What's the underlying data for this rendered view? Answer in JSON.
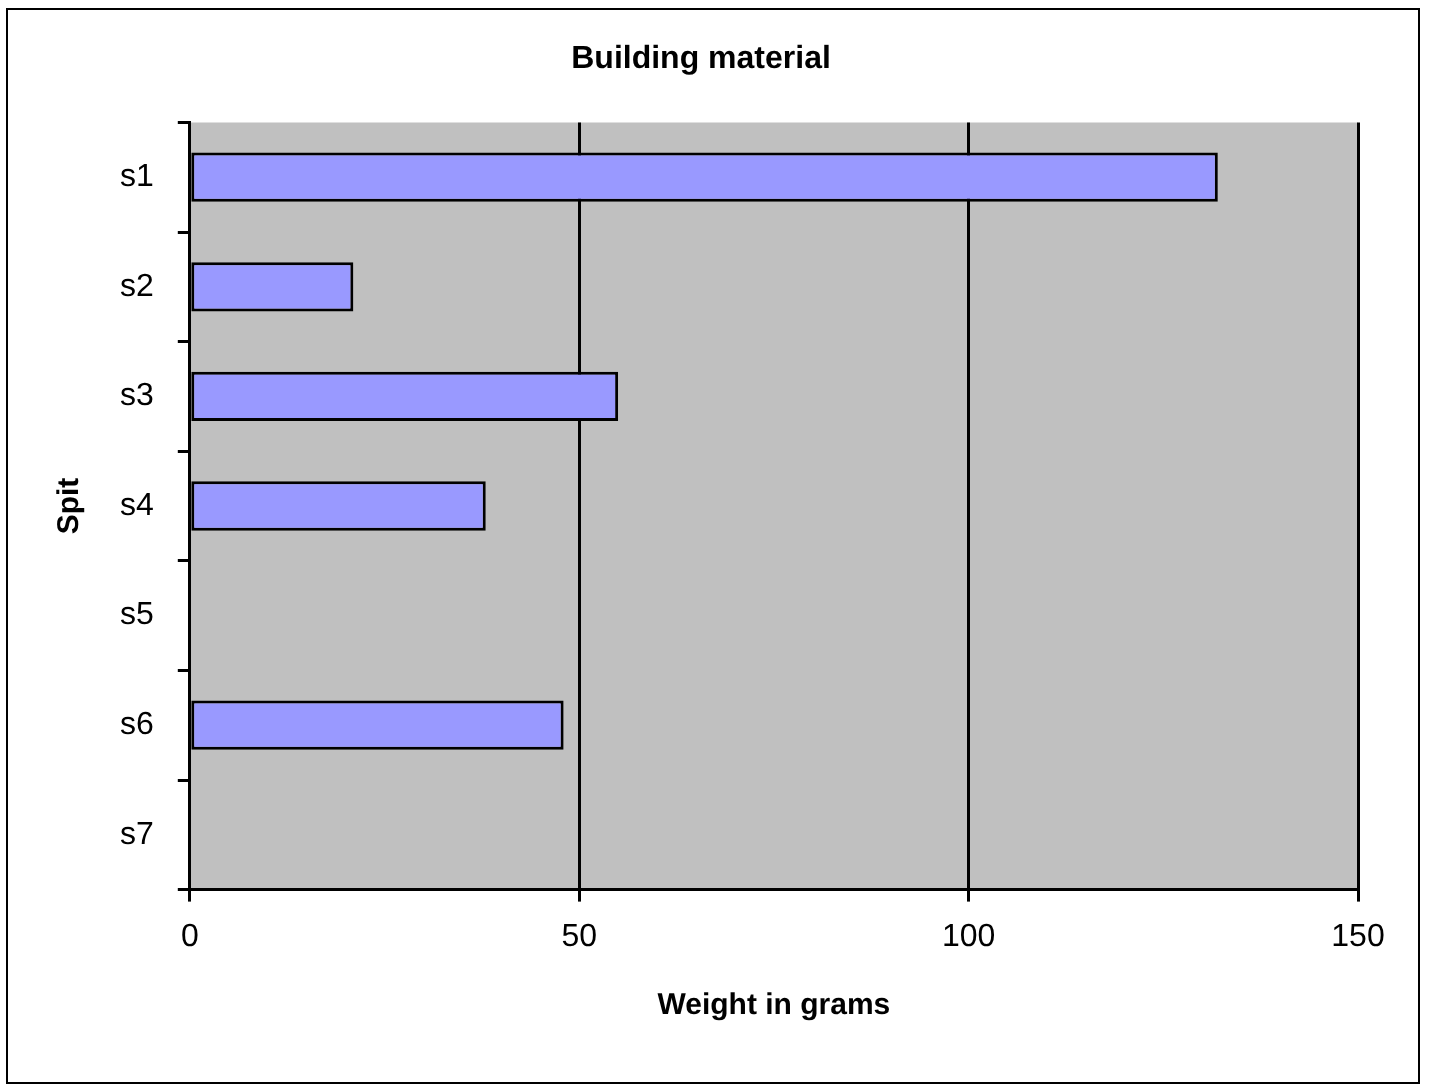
{
  "chart_data": {
    "type": "bar",
    "orientation": "horizontal",
    "title": "Building material",
    "xlabel": "Weight in grams",
    "ylabel": "Spit",
    "categories": [
      "s1",
      "s2",
      "s3",
      "s4",
      "s5",
      "s6",
      "s7"
    ],
    "values": [
      132,
      21,
      55,
      38,
      null,
      48,
      null
    ],
    "color": "#9999ff",
    "xlim": [
      0,
      150
    ],
    "xticks": [
      0,
      50,
      100,
      150
    ],
    "grid": "x",
    "legend": false
  }
}
